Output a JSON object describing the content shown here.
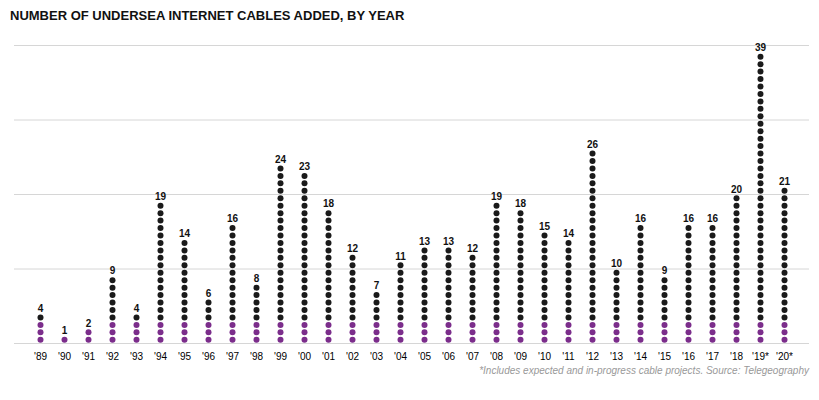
{
  "chart_data": {
    "type": "dot",
    "title": "NUMBER OF UNDERSEA INTERNET CABLES ADDED, BY YEAR",
    "footnote": "*Includes expected and in-progress cable projects.   Source: Telegeography",
    "categories": [
      "'89",
      "'90",
      "'91",
      "'92",
      "'93",
      "'94",
      "'95",
      "'96",
      "'97",
      "'98",
      "'99",
      "'00",
      "'01",
      "'02",
      "'03",
      "'04",
      "'05",
      "'06",
      "'07",
      "'08",
      "'09",
      "'10",
      "'11",
      "'12",
      "'13",
      "'14",
      "'15",
      "'16",
      "'17",
      "'18",
      "'19*",
      "'20*"
    ],
    "values": [
      4,
      1,
      2,
      9,
      4,
      19,
      14,
      6,
      16,
      8,
      24,
      23,
      18,
      12,
      7,
      11,
      13,
      13,
      12,
      19,
      18,
      15,
      14,
      26,
      10,
      16,
      9,
      16,
      16,
      20,
      39,
      21
    ],
    "color": "#1a1a1a",
    "highlight_color": "#7B2D8B",
    "highlight_rows": 3,
    "ylim": [
      0,
      40
    ],
    "yticks": [
      0,
      10,
      20,
      30,
      40
    ],
    "grid": true,
    "tick_labels": "x",
    "data_labels": true
  }
}
